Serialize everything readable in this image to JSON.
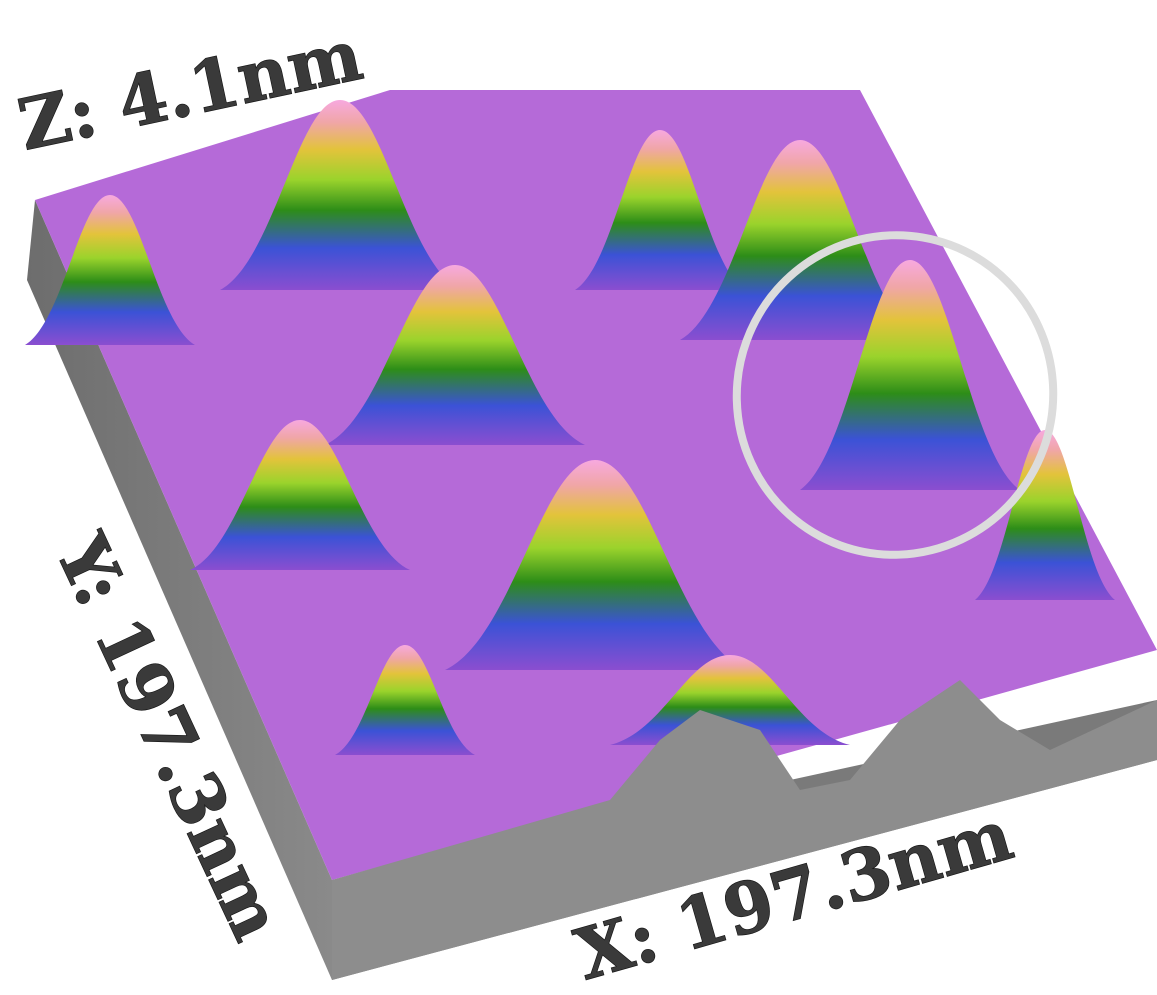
{
  "chart_data": {
    "type": "surface",
    "axes": {
      "z_label": "Z: 4.1nm",
      "y_label": "Y: 197.3nm",
      "x_label": "X: 197.3nm"
    },
    "x_range_nm": [
      0,
      197.3
    ],
    "y_range_nm": [
      0,
      197.3
    ],
    "z_range_nm": [
      0,
      4.1
    ],
    "colormap": [
      "#8a4fc9",
      "#b46be8",
      "#3c4fd8",
      "#2f9a18",
      "#8fd12a",
      "#e8c23a",
      "#f3b7b8",
      "#f6a0d8"
    ],
    "side_face_color": "#7a7a7a",
    "highlight": {
      "shape": "ellipse",
      "color": "#dcdcdc"
    }
  }
}
